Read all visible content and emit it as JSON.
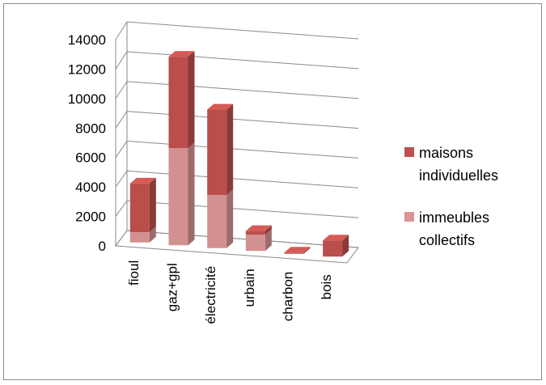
{
  "chart_data": {
    "type": "bar",
    "stacked": true,
    "three_d": true,
    "title": "",
    "xlabel": "",
    "ylabel": "",
    "ylim": [
      0,
      14000
    ],
    "yticks": [
      0,
      2000,
      4000,
      6000,
      8000,
      10000,
      12000,
      14000
    ],
    "grid": true,
    "legend_position": "right",
    "categories": [
      "fioul",
      "gaz+gpl",
      "électricité",
      "urbain",
      "charbon",
      "bois"
    ],
    "series": [
      {
        "name": "immeubles collectifs",
        "color": "#d99594",
        "values": [
          700,
          6600,
          3600,
          1100,
          0,
          0
        ]
      },
      {
        "name": "maisons individuelles",
        "color": "#c0504d",
        "values": [
          3300,
          6200,
          5800,
          250,
          80,
          1100
        ]
      }
    ],
    "legend": [
      {
        "lines": [
          "maisons",
          "individuelles"
        ],
        "color": "#c0504d"
      },
      {
        "lines": [
          "immeubles",
          "collectifs"
        ],
        "color": "#d99594"
      }
    ]
  }
}
